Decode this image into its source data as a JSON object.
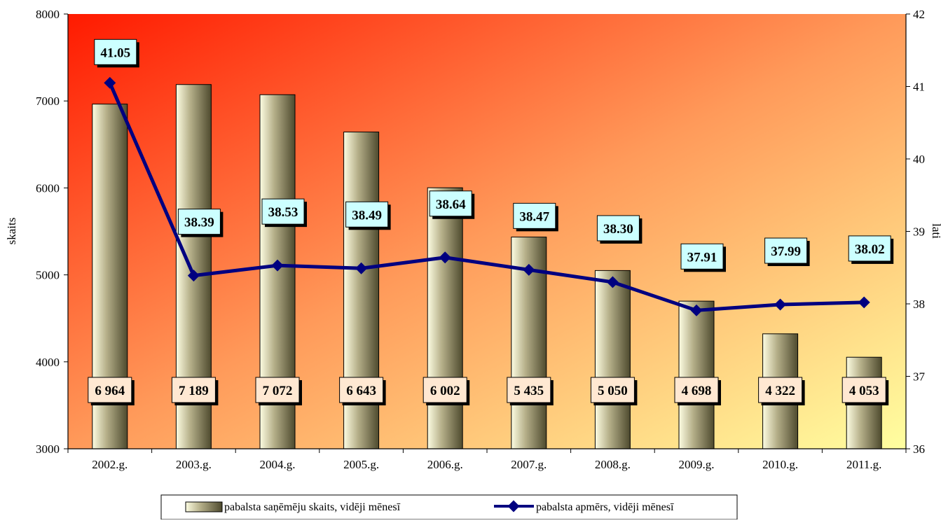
{
  "chart_data": {
    "type": "bar+line",
    "categories": [
      "2002.g.",
      "2003.g.",
      "2004.g.",
      "2005.g.",
      "2006.g.",
      "2007.g.",
      "2008.g.",
      "2009.g.",
      "2010.g.",
      "2011.g."
    ],
    "bar_series": {
      "name": "pabalsta saņēmēju skaits, vidēji mēnesī",
      "values": [
        6964,
        7189,
        7072,
        6643,
        6002,
        5435,
        5050,
        4698,
        4322,
        4053
      ],
      "labels": [
        "6 964",
        "7 189",
        "7 072",
        "6 643",
        "6 002",
        "5 435",
        "5 050",
        "4 698",
        "4 322",
        "4 053"
      ]
    },
    "line_series": {
      "name": "pabalsta apmērs, vidēji mēnesī",
      "values": [
        41.05,
        38.39,
        38.53,
        38.49,
        38.64,
        38.47,
        38.3,
        37.91,
        37.99,
        38.02
      ],
      "labels": [
        "41.05",
        "38.39",
        "38.53",
        "38.49",
        "38.64",
        "38.47",
        "38.30",
        "37.91",
        "37.99",
        "38.02"
      ],
      "color": "#000080"
    },
    "y_left": {
      "label": "skaits",
      "range": [
        3000,
        8000
      ],
      "ticks": [
        "3000",
        "4000",
        "5000",
        "6000",
        "7000",
        "8000"
      ]
    },
    "y_right": {
      "label": "lati",
      "range": [
        36,
        42
      ],
      "ticks": [
        "36",
        "37",
        "38",
        "39",
        "40",
        "41",
        "42"
      ]
    },
    "legend_position": "bottom",
    "grid": false,
    "colors": {
      "background_gradient_start": "#ff1a00",
      "background_gradient_mid": "#ff9a5a",
      "background_gradient_end": "#ffffa0",
      "bar_light": "#fdfde2",
      "bar_mid": "#b6b08a",
      "bar_dark": "#4e4a2e",
      "bar_label_bg": "#ffe8d2",
      "line_label_bg": "#ccffff"
    }
  }
}
